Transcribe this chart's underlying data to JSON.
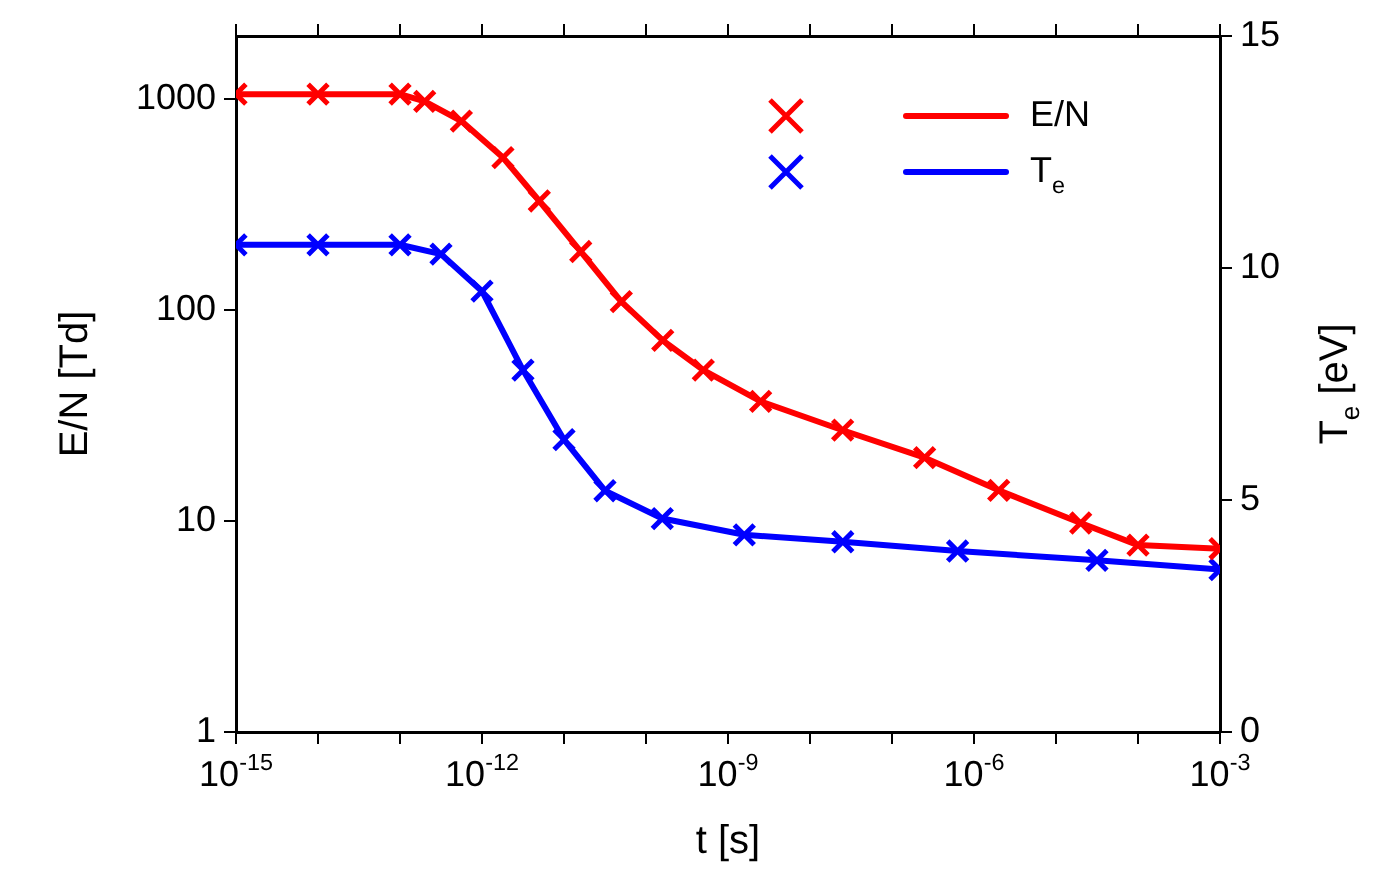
{
  "chart_data": {
    "type": "line",
    "xlabel": "t [s]",
    "ylabel": "E/N [Td]",
    "y2label": "T$_{e}$ [eV]",
    "log": "xy",
    "grid": false,
    "legend": "top right",
    "xlim": [
      1e-15,
      0.001
    ],
    "xticks": [
      {
        "value": 1e-15,
        "label": "10$^{-15}$"
      },
      {
        "value": 1e-14,
        "label": null
      },
      {
        "value": 1e-13,
        "label": null
      },
      {
        "value": 1e-12,
        "label": "10$^{-12}$"
      },
      {
        "value": 1e-11,
        "label": null
      },
      {
        "value": 1e-10,
        "label": null
      },
      {
        "value": 1e-09,
        "label": "10$^{-9}$"
      },
      {
        "value": 1e-08,
        "label": null
      },
      {
        "value": 1e-07,
        "label": null
      },
      {
        "value": 1e-06,
        "label": "10$^{-6}$"
      },
      {
        "value": 1e-05,
        "label": null
      },
      {
        "value": 0.0001,
        "label": null
      },
      {
        "value": 0.001,
        "label": "10$^{-3}$"
      }
    ],
    "ylim": [
      1,
      2000
    ],
    "yticks": [
      1,
      10,
      100,
      1000
    ],
    "y2lim": [
      0,
      15
    ],
    "y2ticks": [
      0,
      5,
      10,
      15
    ],
    "series": [
      {
        "type": "scatter",
        "marker": "cross",
        "color": "#ff0000",
        "x": [
          1e-15,
          1e-14,
          1e-13,
          2e-13,
          5.6e-13,
          1.8e-12,
          5e-12,
          1.6e-11,
          5e-11,
          1.6e-10,
          5e-10,
          2.5e-09,
          2.5e-08,
          2.5e-07,
          2e-06,
          2e-05,
          0.0001,
          0.001
        ],
        "values": [
          1060,
          1060,
          1060,
          980,
          790,
          530,
          330,
          190,
          110,
          72,
          52,
          37,
          27,
          20,
          14,
          9.8,
          7.7,
          7.4
        ]
      },
      {
        "type": "scatter",
        "marker": "cross",
        "color": "#0000ff",
        "axis": "y2",
        "x": [
          1e-15,
          1e-14,
          1e-13,
          3.16e-13,
          1e-12,
          3.16e-12,
          1e-11,
          3.16e-11,
          1.58e-10,
          1.58e-09,
          2.51e-08,
          6.31e-07,
          3.16e-05,
          0.001
        ],
        "values": [
          10.5,
          10.5,
          10.5,
          10.3,
          9.5,
          7.8,
          6.3,
          5.2,
          4.6,
          4.25,
          4.1,
          3.9,
          3.7,
          3.5
        ]
      },
      {
        "type": "line",
        "marker": "none",
        "name": "E/N",
        "color": "#ff0000",
        "x": [
          1e-15,
          1e-14,
          1e-13,
          2e-13,
          5.6e-13,
          1.8e-12,
          5e-12,
          1.6e-11,
          5e-11,
          1.6e-10,
          5e-10,
          2.5e-09,
          2.5e-08,
          2.5e-07,
          2e-06,
          2e-05,
          0.0001,
          0.001
        ],
        "values": [
          1060,
          1060,
          1060,
          980,
          790,
          530,
          330,
          190,
          110,
          72,
          52,
          37,
          27,
          20,
          14,
          9.8,
          7.7,
          7.4
        ]
      },
      {
        "type": "line",
        "marker": "none",
        "name": "T$_{e}$",
        "color": "#0000ff",
        "axis": "y2",
        "x": [
          1e-15,
          1e-14,
          1e-13,
          3.16e-13,
          1e-12,
          3.16e-12,
          1e-11,
          3.16e-11,
          1.58e-10,
          1.58e-09,
          2.51e-08,
          6.31e-07,
          3.16e-05,
          0.001
        ],
        "values": [
          10.5,
          10.5,
          10.5,
          10.3,
          9.5,
          7.8,
          6.3,
          5.2,
          4.6,
          4.25,
          4.1,
          3.9,
          3.7,
          3.5
        ]
      }
    ]
  }
}
